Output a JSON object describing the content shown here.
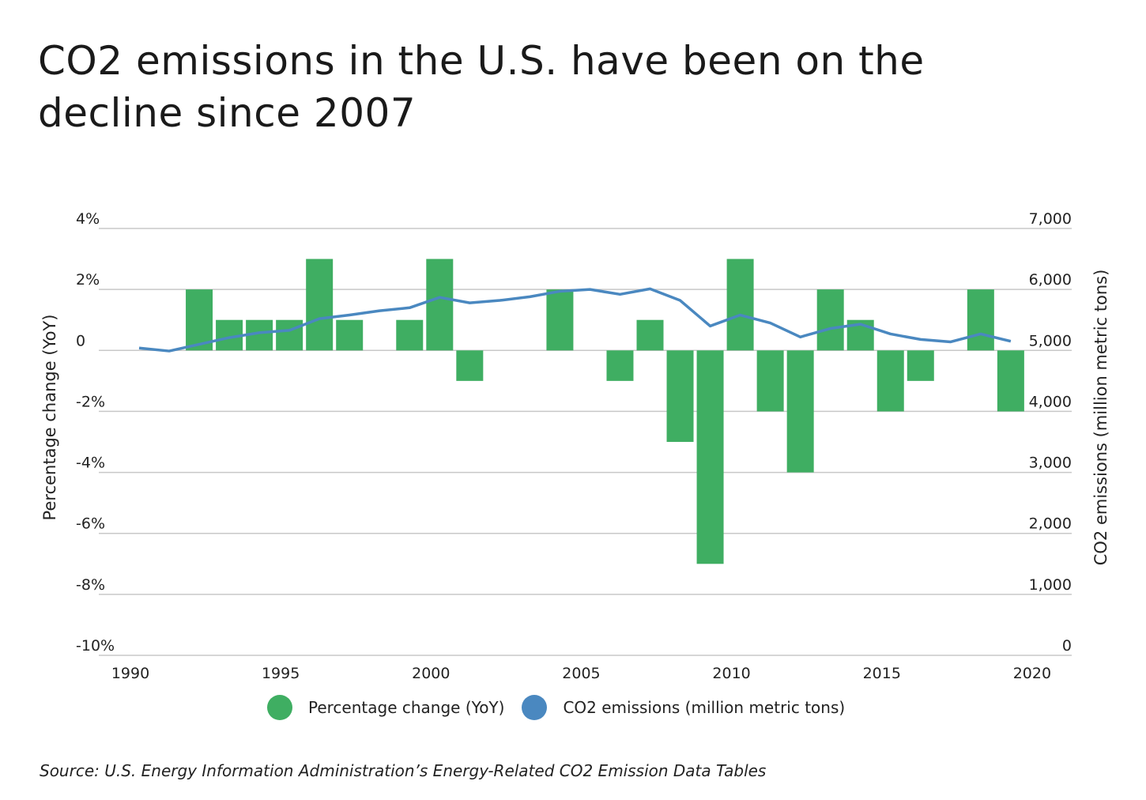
{
  "chart_data": {
    "type": "bar+line",
    "title": "CO2 emissions in the U.S. have been on the decline since 2007",
    "x": [
      1990,
      1991,
      1992,
      1993,
      1994,
      1995,
      1996,
      1997,
      1998,
      1999,
      2000,
      2001,
      2002,
      2003,
      2004,
      2005,
      2006,
      2007,
      2008,
      2009,
      2010,
      2011,
      2012,
      2013,
      2014,
      2015,
      2016,
      2017,
      2018,
      2019
    ],
    "x_ticks": [
      "1990",
      "1995",
      "2000",
      "2005",
      "2010",
      "2015",
      "2020"
    ],
    "x_tick_values": [
      1990,
      1995,
      2000,
      2005,
      2010,
      2015,
      2020
    ],
    "xlim": [
      1990,
      2020
    ],
    "y_left": {
      "label": "Percentage change (YoY)",
      "ylim": [
        -10,
        4
      ],
      "ticks": [
        "4%",
        "2%",
        "0",
        "-2%",
        "-4%",
        "-6%",
        "-8%",
        "-10%"
      ],
      "tick_values": [
        4,
        2,
        0,
        -2,
        -4,
        -6,
        -8,
        -10
      ]
    },
    "y_right": {
      "label": "CO2 emissions (million metric tons)",
      "ylim": [
        0,
        7000
      ],
      "ticks": [
        "7,000",
        "6,000",
        "5,000",
        "4,000",
        "3,000",
        "2,000",
        "1,000",
        "0"
      ],
      "tick_values": [
        7000,
        6000,
        5000,
        4000,
        3000,
        2000,
        1000,
        0
      ]
    },
    "grid": true,
    "legend_placement": "bottom",
    "series": [
      {
        "name": "Percentage change (YoY)",
        "type": "bar",
        "axis": "left",
        "color": "#3fae62",
        "values": [
          null,
          null,
          2,
          1,
          1,
          1,
          3,
          1,
          0,
          1,
          3,
          -1,
          0,
          0,
          2,
          0,
          -1,
          1,
          -3,
          -7,
          3,
          -2,
          -4,
          2,
          1,
          -2,
          -1,
          0,
          2,
          -2
        ]
      },
      {
        "name": "CO2 emissions (million metric tons)",
        "type": "line",
        "axis": "right",
        "color": "#4a88c0",
        "values": [
          5040,
          4990,
          5100,
          5210,
          5290,
          5330,
          5520,
          5580,
          5650,
          5700,
          5870,
          5780,
          5820,
          5880,
          5970,
          6000,
          5920,
          6010,
          5820,
          5400,
          5580,
          5450,
          5220,
          5360,
          5430,
          5270,
          5180,
          5140,
          5270,
          5150
        ]
      }
    ]
  },
  "source": "Source:  U.S. Energy Information Administration’s Energy-Related CO2 Emission Data Tables"
}
